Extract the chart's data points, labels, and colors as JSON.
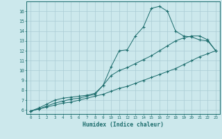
{
  "xlabel": "Humidex (Indice chaleur)",
  "bg_color": "#cce8ec",
  "grid_color": "#aaccd4",
  "line_color": "#1a6b6b",
  "xlim": [
    -0.5,
    23.5
  ],
  "ylim": [
    5.6,
    17.0
  ],
  "xticks": [
    0,
    1,
    2,
    3,
    4,
    5,
    6,
    7,
    8,
    9,
    10,
    11,
    12,
    13,
    14,
    15,
    16,
    17,
    18,
    19,
    20,
    21,
    22,
    23
  ],
  "yticks": [
    6,
    7,
    8,
    9,
    10,
    11,
    12,
    13,
    14,
    15,
    16
  ],
  "line_high_x": [
    0,
    1,
    2,
    3,
    4,
    5,
    6,
    7,
    8,
    9,
    10,
    11,
    12,
    13,
    14,
    15,
    16,
    17,
    18,
    19,
    20,
    21,
    22,
    23
  ],
  "line_high_y": [
    5.9,
    6.2,
    6.6,
    7.0,
    7.2,
    7.3,
    7.4,
    7.5,
    7.7,
    8.5,
    10.4,
    12.0,
    12.1,
    13.5,
    14.4,
    16.3,
    16.5,
    16.0,
    14.0,
    13.5,
    13.4,
    13.1,
    13.0,
    12.0
  ],
  "line_mid_x": [
    0,
    1,
    2,
    3,
    4,
    5,
    6,
    7,
    8,
    9,
    10,
    11,
    12,
    13,
    14,
    15,
    16,
    17,
    18,
    19,
    20,
    21,
    22,
    23
  ],
  "line_mid_y": [
    5.9,
    6.1,
    6.4,
    6.7,
    6.9,
    7.1,
    7.2,
    7.4,
    7.6,
    8.5,
    9.5,
    10.0,
    10.3,
    10.7,
    11.1,
    11.5,
    12.0,
    12.5,
    13.0,
    13.3,
    13.5,
    13.5,
    13.1,
    12.0
  ],
  "line_low_x": [
    0,
    1,
    2,
    3,
    4,
    5,
    6,
    7,
    8,
    9,
    10,
    11,
    12,
    13,
    14,
    15,
    16,
    17,
    18,
    19,
    20,
    21,
    22,
    23
  ],
  "line_low_y": [
    5.9,
    6.1,
    6.3,
    6.5,
    6.7,
    6.8,
    7.0,
    7.2,
    7.4,
    7.6,
    7.9,
    8.2,
    8.4,
    8.7,
    9.0,
    9.3,
    9.6,
    9.9,
    10.2,
    10.6,
    11.0,
    11.4,
    11.7,
    12.0
  ]
}
